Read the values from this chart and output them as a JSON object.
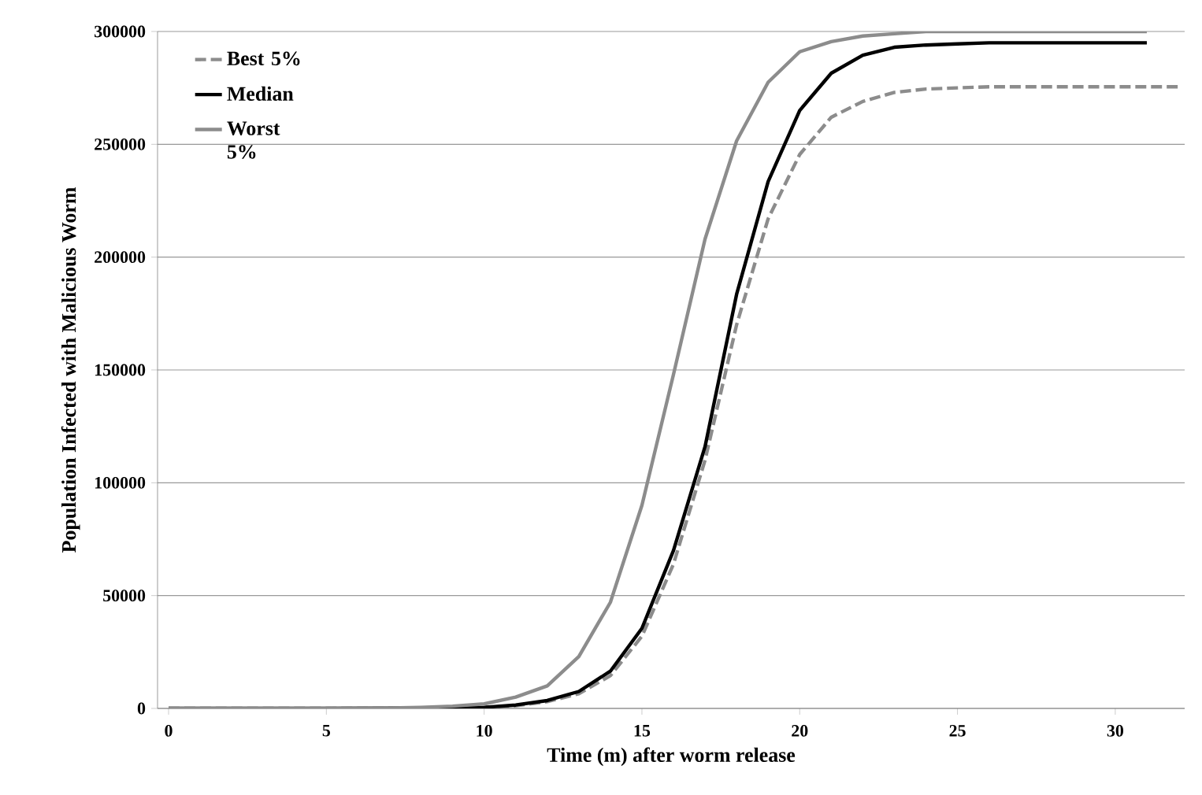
{
  "chart_data": {
    "type": "line",
    "xlabel": "Time (m) after worm release",
    "ylabel": "Population Infected with Malicious Worm",
    "xlim": [
      -0.35,
      32.2
    ],
    "xticks": [
      0,
      5,
      10,
      15,
      20,
      25,
      30
    ],
    "ylim": [
      0,
      300000
    ],
    "yticks": [
      0,
      50000,
      100000,
      150000,
      200000,
      250000,
      300000
    ],
    "grid": "y",
    "legend": "top left",
    "marker": "none",
    "series": [
      {
        "name": "Best 5%",
        "color": "#8c8c8c",
        "line_style": "dashed",
        "x": [
          0,
          5,
          8,
          9,
          10,
          11,
          12,
          13,
          14,
          15,
          16,
          17,
          18,
          19,
          20,
          21,
          22,
          23,
          24,
          25,
          26,
          28,
          30,
          32
        ],
        "values": [
          0,
          0,
          100,
          200,
          400,
          1200,
          3000,
          6500,
          14500,
          32000,
          64000,
          110000,
          170000,
          217000,
          245500,
          262000,
          269000,
          273000,
          274500,
          275000,
          275500,
          275500,
          275500,
          275500
        ]
      },
      {
        "name": "Median",
        "color": "#000000",
        "line_style": "solid",
        "x": [
          0,
          5,
          9,
          10,
          11,
          12,
          13,
          14,
          15,
          16,
          17,
          18,
          19,
          20,
          21,
          22,
          23,
          24,
          25,
          26,
          28,
          31
        ],
        "values": [
          0,
          0,
          200,
          500,
          1500,
          3500,
          7500,
          16500,
          35500,
          70000,
          116000,
          183500,
          233500,
          265000,
          281500,
          289500,
          293000,
          294000,
          294500,
          295000,
          295000,
          295000
        ]
      },
      {
        "name": "Worst 5%",
        "color": "#8c8c8c",
        "line_style": "solid",
        "x": [
          0,
          5,
          7,
          8,
          9,
          10,
          11,
          12,
          13,
          14,
          15,
          16,
          17,
          18,
          19,
          20,
          21,
          22,
          23,
          24,
          26,
          28,
          31
        ],
        "values": [
          0,
          0,
          200,
          500,
          1000,
          2000,
          5000,
          10000,
          23000,
          47000,
          90000,
          148000,
          208000,
          251500,
          277500,
          291000,
          295500,
          298000,
          299000,
          300000,
          300000,
          300000,
          300000
        ]
      }
    ]
  }
}
